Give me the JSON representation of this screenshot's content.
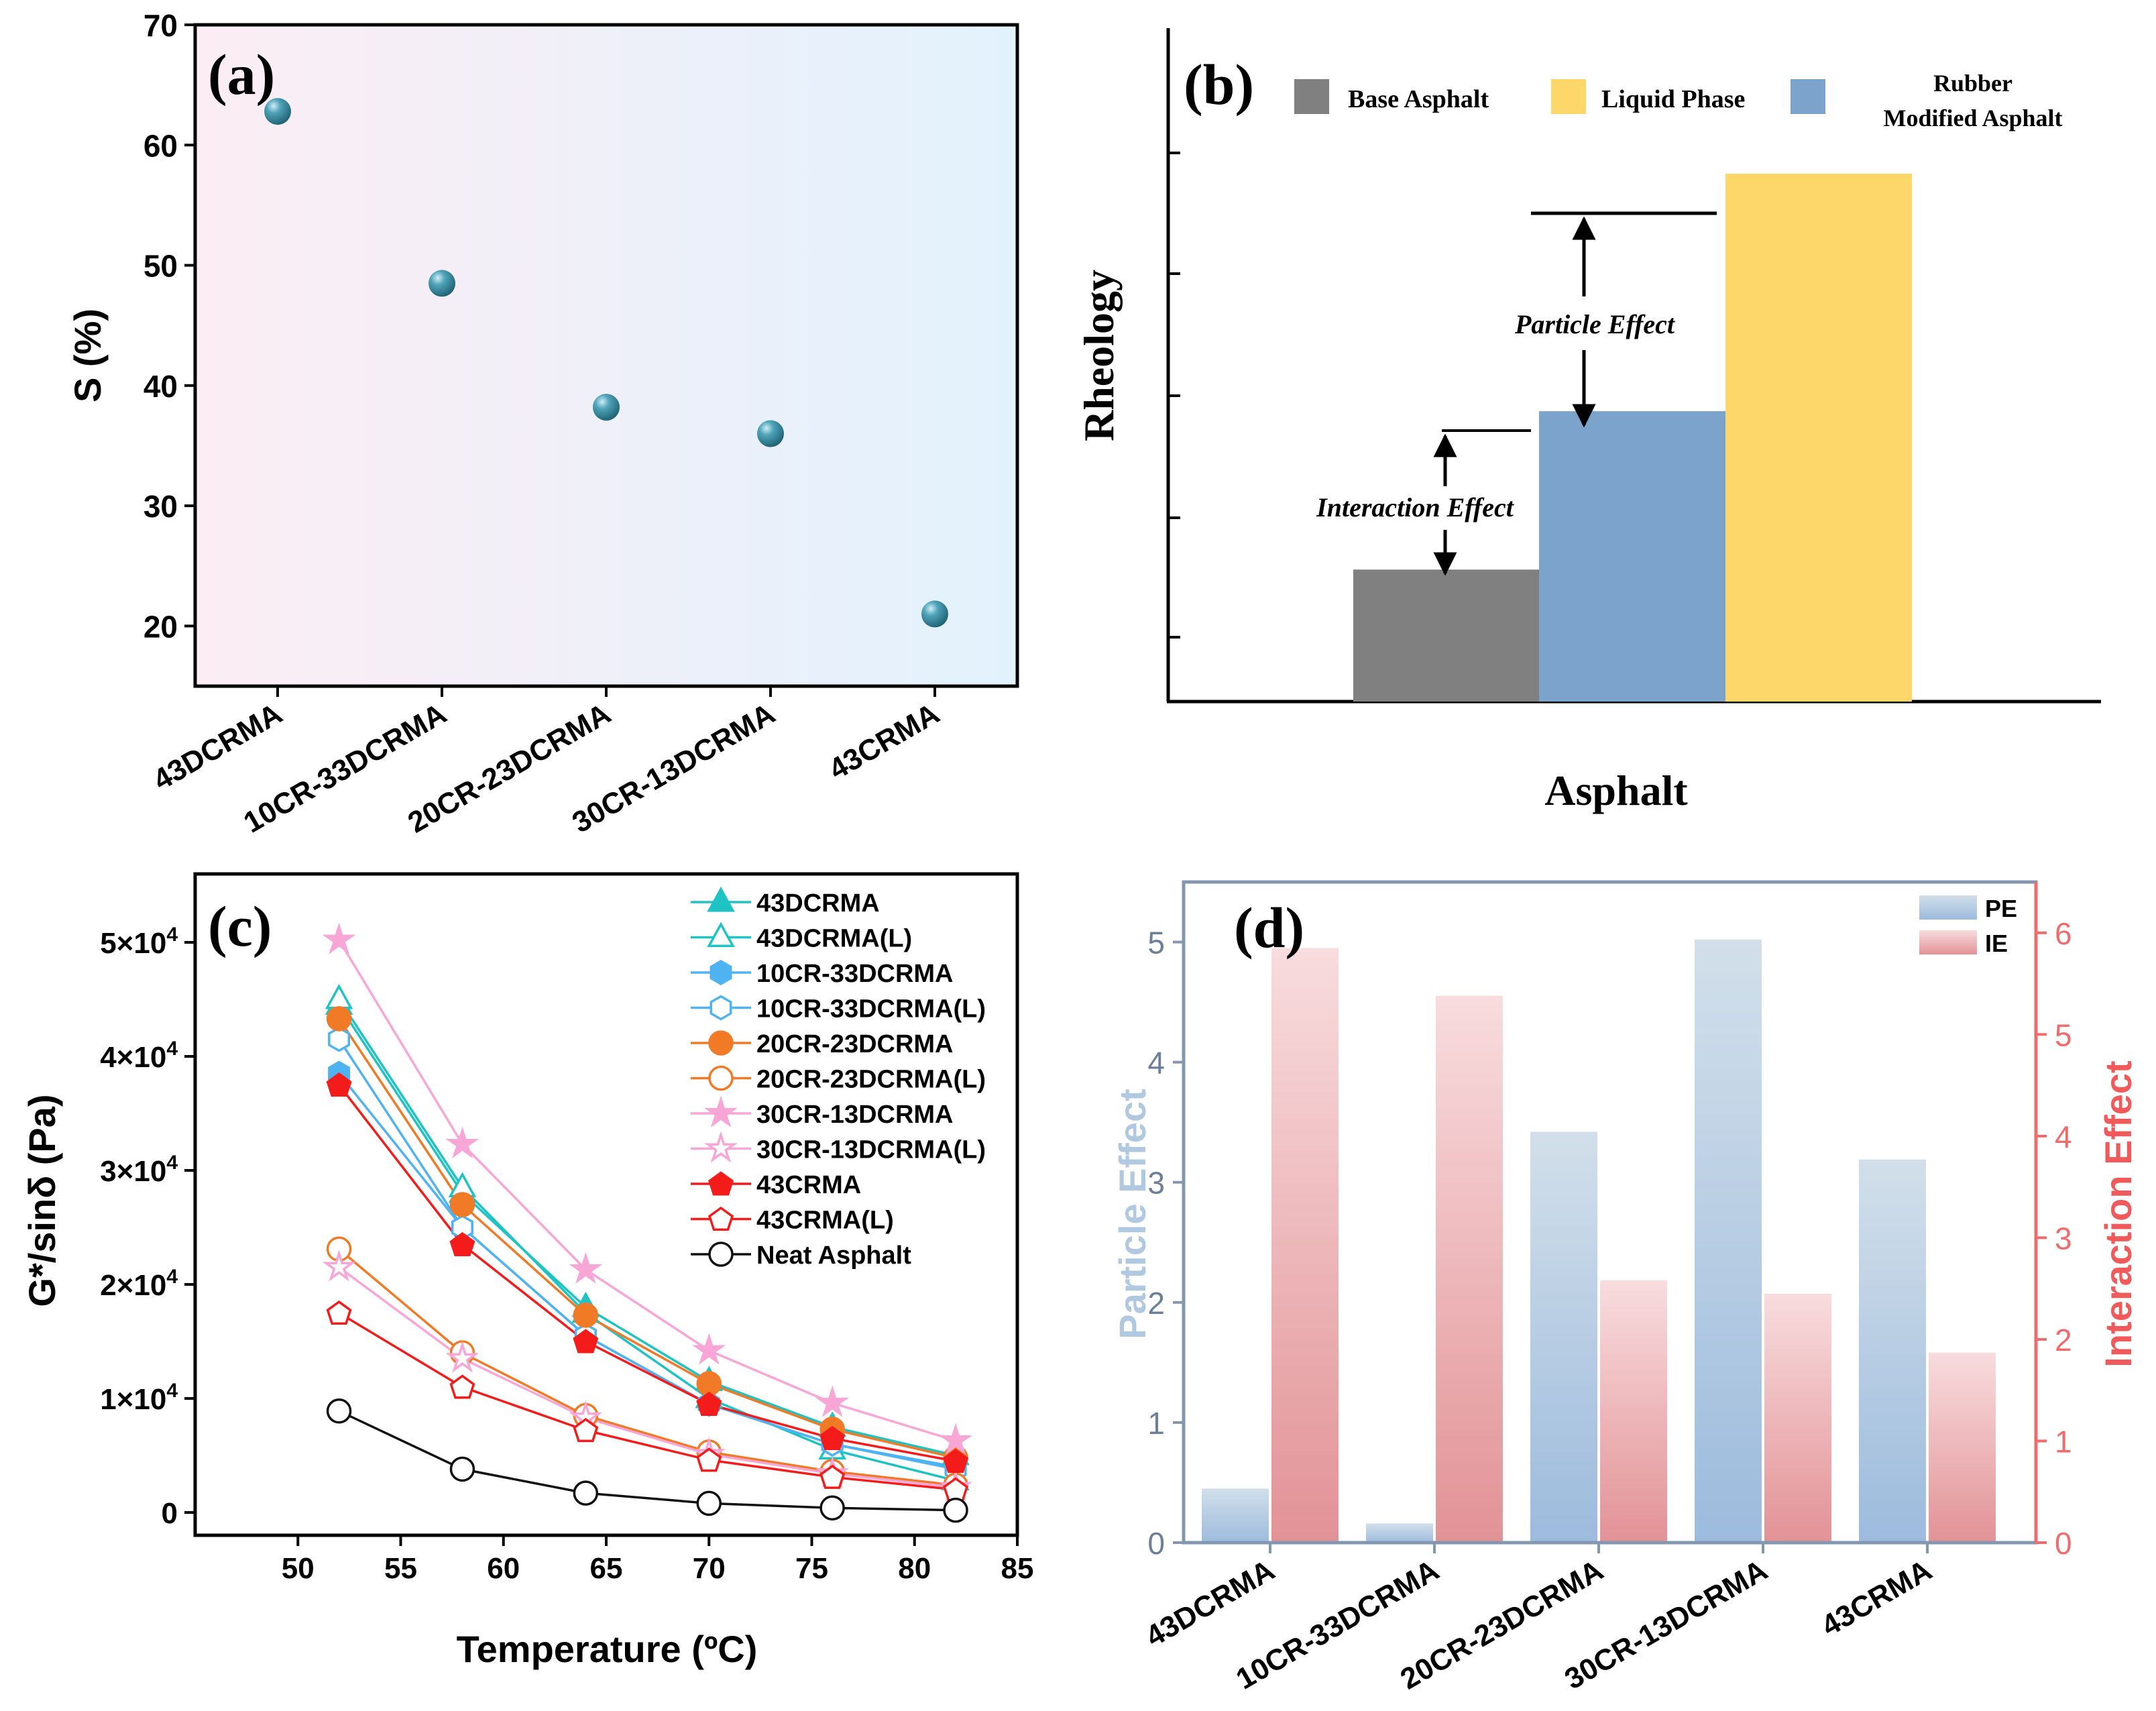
{
  "chart_data": [
    {
      "panel": "(a)",
      "type": "scatter",
      "title": "",
      "xlabel": "",
      "ylabel": "S (%)",
      "ylim": [
        15,
        70
      ],
      "yticks": [
        20,
        30,
        40,
        50,
        60,
        70
      ],
      "categories": [
        "43DCRMA",
        "10CR-33DCRMA",
        "20CR-23DCRMA",
        "30CR-13DCRMA",
        "43CRMA"
      ],
      "values": [
        62.8,
        48.5,
        38.2,
        36.0,
        21.0
      ],
      "point_color": "#2e7f95"
    },
    {
      "panel": "(b)",
      "type": "bar",
      "xlabel": "Asphalt",
      "ylabel": "Rheology",
      "legend": [
        "Base Asphalt",
        "Liquid Phase",
        "Rubber Modified Asphalt"
      ],
      "legend_lines": [
        "Base Asphalt",
        "Liquid Phase",
        "Rubber",
        "Modified Asphalt"
      ],
      "series": [
        {
          "name": "Base Asphalt",
          "value": 1.0,
          "color": "#808080"
        },
        {
          "name": "Rubber Modified Asphalt",
          "value": 2.2,
          "color": "#7ba3cc"
        },
        {
          "name": "Liquid Phase",
          "value": 4.0,
          "color": "#fdd76a"
        }
      ],
      "ylim": [
        0,
        5.0
      ],
      "annotations": [
        "Particle Effect",
        "Interaction Effect"
      ]
    },
    {
      "panel": "(c)",
      "type": "line",
      "xlabel": "Temperature (ºC)",
      "ylabel": "G*/sinδ (Pa)",
      "xlim": [
        45,
        85
      ],
      "xticks": [
        50,
        55,
        60,
        65,
        70,
        75,
        80,
        85
      ],
      "ylim": [
        -2000,
        56000
      ],
      "yticks": [
        0,
        10000,
        20000,
        30000,
        40000,
        50000
      ],
      "ytick_labels": [
        "0",
        "1×10",
        "2×10",
        "3×10",
        "4×10",
        "5×10"
      ],
      "ytick_exponent": "4",
      "x": [
        52,
        58,
        64,
        70,
        76,
        82
      ],
      "series": [
        {
          "name": "43DCRMA",
          "color": "#1fc3c3",
          "marker": "triangle",
          "filled": true,
          "values": [
            44500,
            28000,
            18000,
            11500,
            7500,
            5000
          ]
        },
        {
          "name": "43DCRMA(L)",
          "color": "#1fc3c3",
          "marker": "triangle",
          "filled": false,
          "values": [
            45000,
            28500,
            17500,
            10000,
            5500,
            2800
          ]
        },
        {
          "name": "10CR-33DCRMA",
          "color": "#4fb3f2",
          "marker": "hexagon",
          "filled": true,
          "values": [
            38500,
            25000,
            15500,
            9500,
            6000,
            4000
          ]
        },
        {
          "name": "10CR-33DCRMA(L)",
          "color": "#4fb3f2",
          "marker": "hexagon",
          "filled": false,
          "values": [
            41500,
            25000,
            15500,
            9500,
            6000,
            3800
          ]
        },
        {
          "name": "20CR-23DCRMA",
          "color": "#f07a26",
          "marker": "circle",
          "filled": true,
          "values": [
            43300,
            27000,
            17300,
            11300,
            7300,
            4800
          ]
        },
        {
          "name": "20CR-23DCRMA(L)",
          "color": "#f07a26",
          "marker": "circle",
          "filled": false,
          "values": [
            23100,
            14000,
            8500,
            5300,
            3600,
            2400
          ]
        },
        {
          "name": "30CR-13DCRMA",
          "color": "#f7a6d6",
          "marker": "star",
          "filled": true,
          "values": [
            50200,
            32300,
            21300,
            14200,
            9600,
            6300
          ]
        },
        {
          "name": "30CR-13DCRMA(L)",
          "color": "#f7a6d6",
          "marker": "star",
          "filled": false,
          "values": [
            21500,
            13500,
            8300,
            5100,
            3400,
            2200
          ]
        },
        {
          "name": "43CRMA",
          "color": "#f41b1b",
          "marker": "pentagon",
          "filled": true,
          "values": [
            37500,
            23500,
            15000,
            9500,
            6500,
            4500
          ]
        },
        {
          "name": "43CRMA(L)",
          "color": "#f41b1b",
          "marker": "pentagon",
          "filled": false,
          "values": [
            17500,
            11000,
            7200,
            4600,
            3100,
            2000
          ]
        },
        {
          "name": "Neat Asphalt",
          "color": "#111111",
          "marker": "circle",
          "filled": false,
          "values": [
            8900,
            3800,
            1700,
            800,
            400,
            200
          ]
        }
      ]
    },
    {
      "panel": "(d)",
      "type": "bar",
      "xlabel": "",
      "ylabel": "Particle Effect",
      "ylabel_right": "Interaction Effect",
      "categories": [
        "43DCRMA",
        "10CR-33DCRMA",
        "20CR-23DCRMA",
        "30CR-13DCRMA",
        "43CRMA"
      ],
      "ylim": [
        0,
        5.5
      ],
      "yticks": [
        0,
        1,
        2,
        3,
        4,
        5
      ],
      "ylim_right": [
        0,
        6.5
      ],
      "yticks_right": [
        0,
        1,
        2,
        3,
        4,
        5,
        6
      ],
      "legend": [
        "PE",
        "IE"
      ],
      "series": [
        {
          "name": "PE",
          "axis": "left",
          "color": "#a9c4df",
          "values": [
            0.45,
            0.16,
            3.42,
            5.02,
            3.19
          ]
        },
        {
          "name": "IE",
          "axis": "right",
          "color": "#eca7aa",
          "values": [
            5.85,
            5.38,
            2.58,
            2.45,
            1.87
          ]
        }
      ]
    }
  ]
}
